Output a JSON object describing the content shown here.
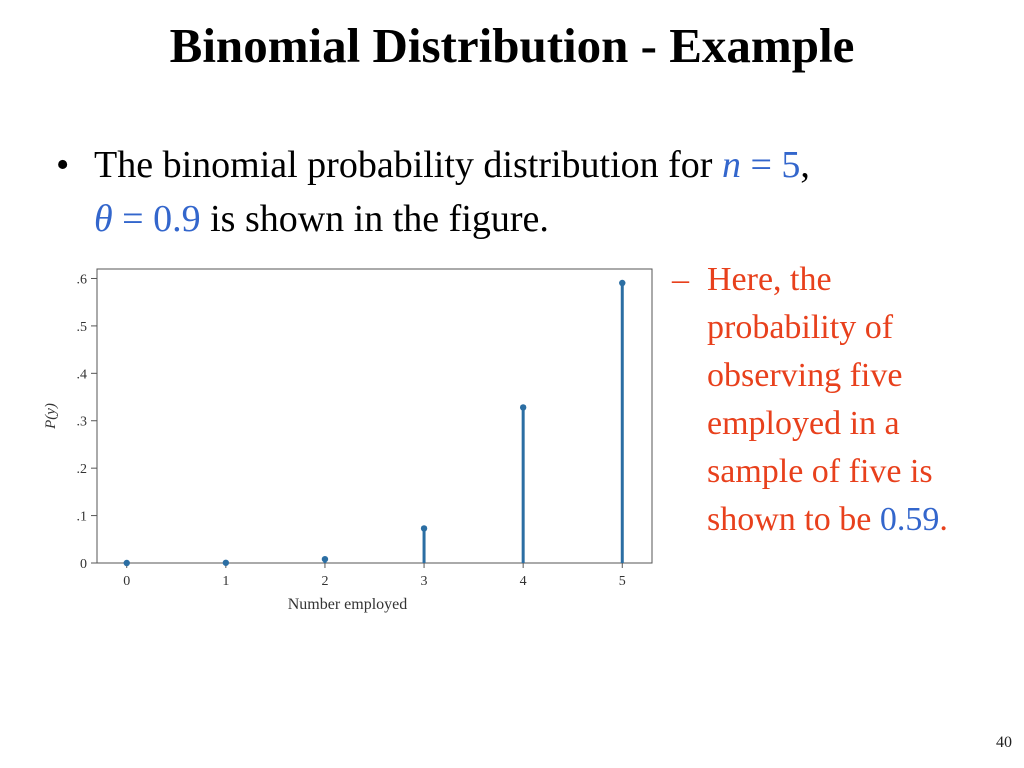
{
  "slide": {
    "title": "Binomial Distribution - Example",
    "bullet": {
      "marker": "•",
      "line1_text": "The binomial probability distribution for ",
      "math_n_var": "n",
      "math_n_rest": " = 5",
      "line1_end": ",",
      "math_theta_var": "θ",
      "math_theta_rest": " = 0.9",
      "line2_text": " is shown in the figure."
    },
    "sub_bullet": {
      "marker": "–",
      "text": "Here, the probability of observing five employed in a sample of five is shown to be",
      "number": "0.59",
      "end": "."
    },
    "page_number": "40"
  },
  "colors": {
    "title": "#000000",
    "math": "#3366cc",
    "sub_bullet_text": "#e8401c",
    "stem": "#2b6ea3"
  },
  "chart_data": {
    "type": "scatter",
    "style": "stem",
    "xlabel": "Number employed",
    "ylabel": "P(y)",
    "x": [
      0,
      1,
      2,
      3,
      4,
      5
    ],
    "values": [
      1e-05,
      0.00045,
      0.0081,
      0.0729,
      0.32805,
      0.59049
    ],
    "xticks": [
      "0",
      "1",
      "2",
      "3",
      "4",
      "5"
    ],
    "yticks": [
      {
        "value": 0,
        "label": "0"
      },
      {
        "value": 0.1,
        "label": ".1"
      },
      {
        "value": 0.2,
        "label": ".2"
      },
      {
        "value": 0.3,
        "label": ".3"
      },
      {
        "value": 0.4,
        "label": ".4"
      },
      {
        "value": 0.5,
        "label": ".5"
      },
      {
        "value": 0.6,
        "label": ".6"
      }
    ],
    "xlim": [
      -0.3,
      5.3
    ],
    "ylim": [
      0,
      0.62
    ],
    "grid": false,
    "legend": "none"
  }
}
